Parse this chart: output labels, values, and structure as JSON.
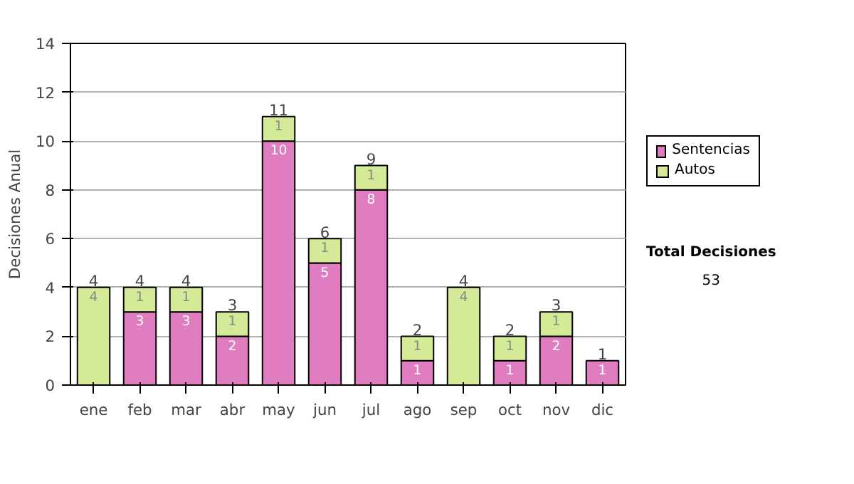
{
  "chart_data": {
    "type": "bar",
    "stacked": true,
    "ylabel": "Decisiones Anual",
    "categories": [
      "ene",
      "feb",
      "mar",
      "abr",
      "may",
      "jun",
      "jul",
      "ago",
      "sep",
      "oct",
      "nov",
      "dic"
    ],
    "series": [
      {
        "name": "Sentencias",
        "color": "#e07cc0",
        "values": [
          0,
          3,
          3,
          2,
          10,
          5,
          8,
          1,
          0,
          1,
          2,
          1
        ],
        "value_labels": [
          null,
          "3",
          "3",
          "2",
          "10",
          "5",
          "8",
          "1",
          null,
          "1",
          "2",
          "1"
        ]
      },
      {
        "name": "Autos",
        "color": "#d4ea97",
        "values": [
          4,
          1,
          1,
          1,
          1,
          1,
          1,
          1,
          4,
          1,
          1,
          0
        ],
        "value_labels": [
          "4",
          "1",
          "1",
          "1",
          "1",
          "1",
          "1",
          "1",
          "4",
          "1",
          "1",
          null
        ]
      }
    ],
    "totals": [
      "4",
      "4",
      "4",
      "3",
      "11",
      "6",
      "9",
      "2",
      "4",
      "2",
      "3",
      "1"
    ],
    "ylim": [
      0,
      14
    ],
    "yticks": [
      0,
      2,
      4,
      6,
      8,
      10,
      12,
      14
    ],
    "grid": "y",
    "legend": "right",
    "annotations": [
      "Total Decisiones",
      "53"
    ]
  }
}
